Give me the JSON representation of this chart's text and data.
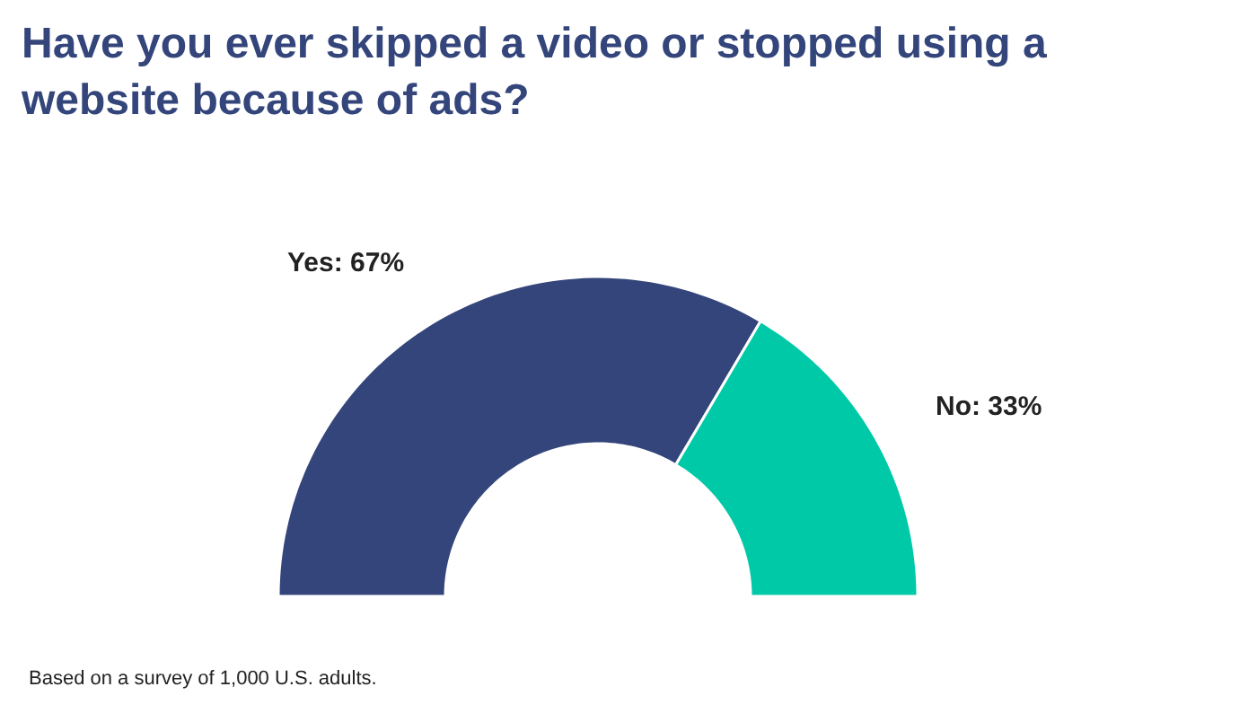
{
  "chart_data": {
    "type": "donut",
    "title": "Have you ever skipped a video or stopped using a website because of ads?",
    "categories": [
      "Yes: 67%",
      "No: 33%"
    ],
    "values": [
      67,
      33
    ],
    "colors": [
      "#33457a",
      "#00c9a7"
    ],
    "annotations": [
      "Based on a survey of 1,000 U.S. adults."
    ],
    "legend": false
  }
}
